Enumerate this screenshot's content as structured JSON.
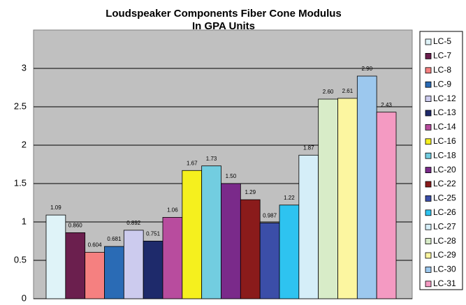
{
  "chart_data": {
    "type": "bar",
    "title": [
      "Loudspeaker Components Fiber Cone Modulus",
      "In GPA Units"
    ],
    "categories": [
      null
    ],
    "ylim": [
      0,
      3.5
    ],
    "yticks": [
      0,
      0.5,
      1,
      1.5,
      2,
      2.5,
      3
    ],
    "grid": true,
    "legend": "right",
    "series": [
      {
        "name": "LC-5",
        "color": "#dff3f8",
        "values": [
          1.09
        ]
      },
      {
        "name": "LC-7",
        "color": "#6b1f4e",
        "values": [
          0.86
        ],
        "value_labels": [
          "0.860"
        ]
      },
      {
        "name": "LC-8",
        "color": "#f58080",
        "values": [
          0.604
        ]
      },
      {
        "name": "LC-9",
        "color": "#2a6bb5",
        "values": [
          0.681
        ]
      },
      {
        "name": "LC-12",
        "color": "#cccbee",
        "values": [
          0.892
        ]
      },
      {
        "name": "LC-13",
        "color": "#1e2a6b",
        "values": [
          0.751
        ]
      },
      {
        "name": "LC-14",
        "color": "#b84c9e",
        "values": [
          1.06
        ]
      },
      {
        "name": "LC-16",
        "color": "#f5f01e",
        "values": [
          1.67
        ]
      },
      {
        "name": "LC-18",
        "color": "#72cde0",
        "values": [
          1.73
        ]
      },
      {
        "name": "LC-20",
        "color": "#7a2a8a",
        "values": [
          1.5
        ],
        "value_labels": [
          "1.50"
        ]
      },
      {
        "name": "LC-22",
        "color": "#8a1b1b",
        "values": [
          1.29
        ]
      },
      {
        "name": "LC-25",
        "color": "#3b4ea8",
        "values": [
          0.987
        ]
      },
      {
        "name": "LC-26",
        "color": "#2ec3f0",
        "values": [
          1.22
        ]
      },
      {
        "name": "LC-27",
        "color": "#d5eef8",
        "values": [
          1.87
        ]
      },
      {
        "name": "LC-28",
        "color": "#d8ecc8",
        "values": [
          2.6
        ],
        "value_labels": [
          "2.60"
        ]
      },
      {
        "name": "LC-29",
        "color": "#fcf6a0",
        "values": [
          2.61
        ]
      },
      {
        "name": "LC-30",
        "color": "#9cc8ee",
        "values": [
          2.9
        ],
        "value_labels": [
          "2.90"
        ]
      },
      {
        "name": "LC-31",
        "color": "#f49ac2",
        "values": [
          2.43
        ]
      }
    ]
  }
}
